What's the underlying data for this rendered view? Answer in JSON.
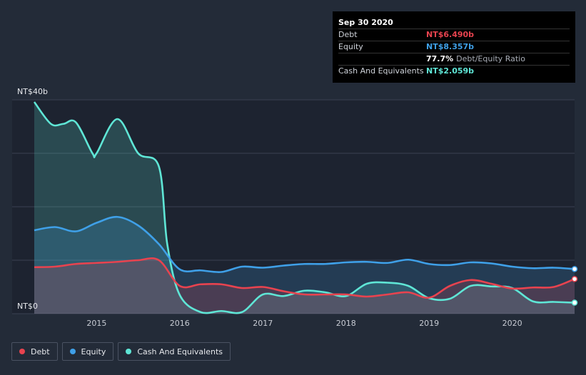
{
  "tooltip": {
    "date": "Sep 30 2020",
    "rows": [
      {
        "label": "Debt",
        "value": "NT$6.490b",
        "color": "#e8434f"
      },
      {
        "label": "Equity",
        "value": "NT$8.357b",
        "color": "#3fa0e8"
      },
      {
        "label": "",
        "value": "77.7%",
        "sub": "Debt/Equity Ratio",
        "color": "#ffffff"
      },
      {
        "label": "Cash And Equivalents",
        "value": "NT$2.059b",
        "color": "#5fe6d6"
      }
    ]
  },
  "legend": [
    {
      "label": "Debt",
      "color": "#e8434f"
    },
    {
      "label": "Equity",
      "color": "#3fa0e8"
    },
    {
      "label": "Cash And Equivalents",
      "color": "#5fe6d6"
    }
  ],
  "chart_data": {
    "type": "area",
    "y_unit": "NT$b",
    "ylim": [
      0,
      40
    ],
    "y_tick_labels": [
      {
        "value": 40,
        "label": "NT$40b"
      },
      {
        "value": 0,
        "label": "NT$0"
      }
    ],
    "xlim": [
      2014.25,
      2020.75
    ],
    "x_ticks": [
      2015,
      2016,
      2017,
      2018,
      2019,
      2020
    ],
    "series": [
      {
        "name": "Debt",
        "color": "#e8434f",
        "points": [
          [
            2014.25,
            8.7
          ],
          [
            2014.5,
            8.8
          ],
          [
            2014.75,
            9.3
          ],
          [
            2015.0,
            9.5
          ],
          [
            2015.25,
            9.7
          ],
          [
            2015.5,
            10.0
          ],
          [
            2015.75,
            10.0
          ],
          [
            2016.0,
            5.2
          ],
          [
            2016.25,
            5.5
          ],
          [
            2016.5,
            5.5
          ],
          [
            2016.75,
            4.8
          ],
          [
            2017.0,
            5.0
          ],
          [
            2017.25,
            4.2
          ],
          [
            2017.5,
            3.6
          ],
          [
            2017.75,
            3.6
          ],
          [
            2018.0,
            3.6
          ],
          [
            2018.25,
            3.2
          ],
          [
            2018.5,
            3.6
          ],
          [
            2018.75,
            4.0
          ],
          [
            2019.0,
            3.0
          ],
          [
            2019.25,
            5.2
          ],
          [
            2019.5,
            6.3
          ],
          [
            2019.75,
            5.6
          ],
          [
            2020.0,
            4.7
          ],
          [
            2020.25,
            4.9
          ],
          [
            2020.5,
            5.0
          ],
          [
            2020.75,
            6.49
          ]
        ]
      },
      {
        "name": "Equity",
        "color": "#3fa0e8",
        "points": [
          [
            2014.25,
            15.6
          ],
          [
            2014.5,
            16.2
          ],
          [
            2014.75,
            15.4
          ],
          [
            2015.0,
            17.0
          ],
          [
            2015.25,
            18.1
          ],
          [
            2015.5,
            16.5
          ],
          [
            2015.75,
            13.0
          ],
          [
            2016.0,
            8.3
          ],
          [
            2016.25,
            8.1
          ],
          [
            2016.5,
            7.8
          ],
          [
            2016.75,
            8.8
          ],
          [
            2017.0,
            8.6
          ],
          [
            2017.25,
            9.0
          ],
          [
            2017.5,
            9.3
          ],
          [
            2017.75,
            9.3
          ],
          [
            2018.0,
            9.6
          ],
          [
            2018.25,
            9.7
          ],
          [
            2018.5,
            9.5
          ],
          [
            2018.75,
            10.1
          ],
          [
            2019.0,
            9.3
          ],
          [
            2019.25,
            9.1
          ],
          [
            2019.5,
            9.6
          ],
          [
            2019.75,
            9.4
          ],
          [
            2020.0,
            8.8
          ],
          [
            2020.25,
            8.5
          ],
          [
            2020.5,
            8.6
          ],
          [
            2020.75,
            8.357
          ]
        ]
      },
      {
        "name": "Cash And Equivalents",
        "color": "#5fe6d6",
        "points": [
          [
            2014.25,
            39.6
          ],
          [
            2014.45,
            35.5
          ],
          [
            2014.6,
            35.5
          ],
          [
            2014.75,
            35.8
          ],
          [
            2014.95,
            30.0
          ],
          [
            2015.0,
            30.0
          ],
          [
            2015.25,
            36.4
          ],
          [
            2015.5,
            30.0
          ],
          [
            2015.75,
            27.5
          ],
          [
            2015.85,
            13.0
          ],
          [
            2016.0,
            3.5
          ],
          [
            2016.25,
            0.3
          ],
          [
            2016.5,
            0.5
          ],
          [
            2016.75,
            0.3
          ],
          [
            2017.0,
            3.6
          ],
          [
            2017.25,
            3.3
          ],
          [
            2017.5,
            4.3
          ],
          [
            2017.75,
            4.0
          ],
          [
            2018.0,
            3.3
          ],
          [
            2018.25,
            5.6
          ],
          [
            2018.5,
            5.8
          ],
          [
            2018.75,
            5.2
          ],
          [
            2019.0,
            2.9
          ],
          [
            2019.25,
            2.8
          ],
          [
            2019.5,
            5.2
          ],
          [
            2019.75,
            5.1
          ],
          [
            2020.0,
            4.8
          ],
          [
            2020.25,
            2.3
          ],
          [
            2020.5,
            2.2
          ],
          [
            2020.75,
            2.059
          ]
        ]
      }
    ]
  }
}
